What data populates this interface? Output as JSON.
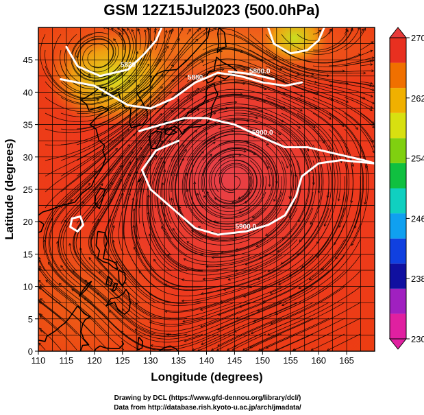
{
  "title": "GSM 12Z15Jul2023 (500.0hPa)",
  "xlabel": "Longitude (degrees)",
  "ylabel": "Latitude  (degrees)",
  "credits": [
    "Drawing by DCL (https://www.gfd-dennou.org/library/dcl/)",
    "Data from http://database.rish.kyoto-u.ac.jp/arch/jmadata/"
  ],
  "map_data": {
    "type": "map",
    "projection": "equirectangular",
    "lon_range": [
      110,
      170
    ],
    "lat_range": [
      0,
      50
    ],
    "x_ticks": [
      "110",
      "115",
      "120",
      "125",
      "130",
      "135",
      "140",
      "145",
      "150",
      "155",
      "160",
      "165"
    ],
    "y_ticks": [
      "0",
      "5",
      "10",
      "15",
      "20",
      "25",
      "30",
      "35",
      "40",
      "45"
    ],
    "grid": true,
    "shading_variable_range": [
      230,
      270
    ],
    "colorbar": {
      "ticks": [
        "230",
        "238",
        "246",
        "254",
        "262",
        "270"
      ],
      "colors": [
        "#e020a0",
        "#a020c0",
        "#1010a0",
        "#1040e0",
        "#10a0f0",
        "#10d0c0",
        "#10c040",
        "#80d010",
        "#d8e010",
        "#f0b000",
        "#f07000",
        "#e83020"
      ]
    },
    "contours": [
      {
        "label": "5880",
        "points": [
          [
            114,
            42
          ],
          [
            120,
            41
          ],
          [
            126,
            38
          ],
          [
            130,
            37.5
          ],
          [
            134,
            39
          ],
          [
            138,
            41.5
          ],
          [
            142,
            43
          ],
          [
            146,
            42.5
          ],
          [
            150,
            41.5
          ],
          [
            154,
            41
          ],
          [
            157,
            41.5
          ]
        ]
      },
      {
        "label": "5800.0",
        "points": [
          [
            144,
            43.2
          ],
          [
            147,
            42.9
          ],
          [
            149.5,
            42.5
          ],
          [
            152,
            42
          ]
        ]
      },
      {
        "label": "5900.0",
        "points": [
          [
            128,
            34
          ],
          [
            132,
            35
          ],
          [
            136,
            36
          ],
          [
            140,
            36
          ],
          [
            145,
            35
          ],
          [
            150,
            33
          ],
          [
            154,
            31.5
          ],
          [
            158,
            31.5
          ],
          [
            163,
            30.5
          ],
          [
            168,
            29.5
          ],
          [
            170,
            29
          ]
        ]
      },
      {
        "label": "5900.0",
        "points": [
          [
            135,
            32.5
          ],
          [
            131,
            31
          ],
          [
            128.5,
            28
          ],
          [
            130,
            25
          ],
          [
            134,
            22
          ],
          [
            138,
            19
          ],
          [
            142,
            18
          ],
          [
            147,
            18.5
          ],
          [
            151,
            19.5
          ],
          [
            154,
            21
          ],
          [
            156,
            24
          ],
          [
            157,
            27
          ],
          [
            160,
            29
          ],
          [
            164,
            29.5
          ],
          [
            170,
            29
          ]
        ]
      },
      {
        "label": "5820",
        "points": [
          [
            115,
            47
          ],
          [
            117,
            44
          ],
          [
            121,
            42.5
          ],
          [
            126,
            43.5
          ],
          [
            129,
            46
          ],
          [
            131,
            48
          ],
          [
            132,
            50
          ]
        ]
      },
      {
        "label": "",
        "points": [
          [
            151,
            50
          ],
          [
            152,
            47.5
          ],
          [
            155,
            46
          ],
          [
            158,
            46.5
          ],
          [
            160,
            48
          ],
          [
            161,
            50
          ]
        ]
      },
      {
        "label": "",
        "points": [
          [
            116,
            20.5
          ],
          [
            117.5,
            20.8
          ],
          [
            118,
            19.5
          ],
          [
            117,
            18.5
          ],
          [
            115.7,
            19.2
          ],
          [
            116,
            20.5
          ]
        ]
      }
    ]
  }
}
